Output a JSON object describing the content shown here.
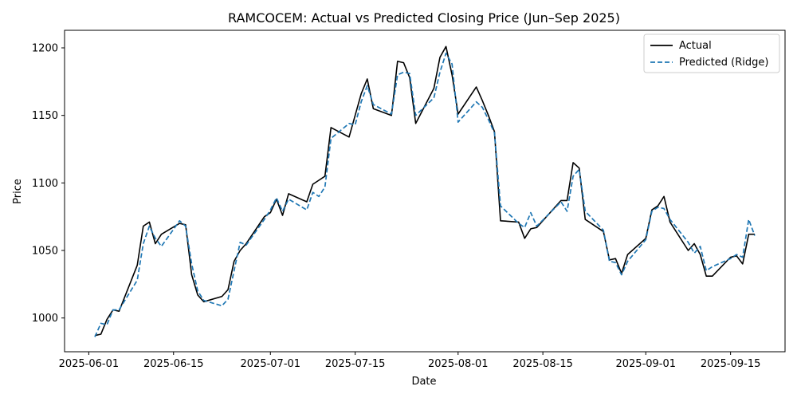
{
  "chart_data": {
    "type": "line",
    "title": "RAMCOCEM: Actual vs Predicted Closing Price (Jun–Sep 2025)",
    "xlabel": "Date",
    "ylabel": "Price",
    "xlim": [
      "2025-05-28",
      "2025-09-24"
    ],
    "ylim": [
      975,
      1213
    ],
    "x_ticks": [
      "2025-06-01",
      "2025-06-15",
      "2025-07-01",
      "2025-07-15",
      "2025-08-01",
      "2025-08-15",
      "2025-09-01",
      "2025-09-15"
    ],
    "y_ticks": [
      1000,
      1050,
      1100,
      1150,
      1200
    ],
    "grid": false,
    "legend_position": "top-right",
    "series": [
      {
        "name": "Actual",
        "color": "#000000",
        "style": "solid",
        "points": [
          [
            "2025-06-02",
            987
          ],
          [
            "2025-06-03",
            988
          ],
          [
            "2025-06-04",
            999
          ],
          [
            "2025-06-05",
            1006
          ],
          [
            "2025-06-06",
            1005
          ],
          [
            "2025-06-09",
            1039
          ],
          [
            "2025-06-10",
            1068
          ],
          [
            "2025-06-11",
            1071
          ],
          [
            "2025-06-12",
            1055
          ],
          [
            "2025-06-13",
            1062
          ],
          [
            "2025-06-16",
            1070
          ],
          [
            "2025-06-17",
            1069
          ],
          [
            "2025-06-18",
            1032
          ],
          [
            "2025-06-19",
            1017
          ],
          [
            "2025-06-20",
            1012
          ],
          [
            "2025-06-23",
            1016
          ],
          [
            "2025-06-24",
            1021
          ],
          [
            "2025-06-25",
            1042
          ],
          [
            "2025-06-26",
            1050
          ],
          [
            "2025-06-27",
            1055
          ],
          [
            "2025-06-30",
            1075
          ],
          [
            "2025-07-01",
            1078
          ],
          [
            "2025-07-02",
            1088
          ],
          [
            "2025-07-03",
            1076
          ],
          [
            "2025-07-04",
            1092
          ],
          [
            "2025-07-07",
            1086
          ],
          [
            "2025-07-08",
            1099
          ],
          [
            "2025-07-09",
            1102
          ],
          [
            "2025-07-10",
            1105
          ],
          [
            "2025-07-11",
            1141
          ],
          [
            "2025-07-14",
            1134
          ],
          [
            "2025-07-15",
            1150
          ],
          [
            "2025-07-16",
            1166
          ],
          [
            "2025-07-17",
            1177
          ],
          [
            "2025-07-18",
            1155
          ],
          [
            "2025-07-21",
            1150
          ],
          [
            "2025-07-22",
            1190
          ],
          [
            "2025-07-23",
            1189
          ],
          [
            "2025-07-24",
            1178
          ],
          [
            "2025-07-25",
            1144
          ],
          [
            "2025-07-28",
            1170
          ],
          [
            "2025-07-29",
            1193
          ],
          [
            "2025-07-30",
            1201
          ],
          [
            "2025-07-31",
            1180
          ],
          [
            "2025-08-01",
            1151
          ],
          [
            "2025-08-04",
            1171
          ],
          [
            "2025-08-05",
            1161
          ],
          [
            "2025-08-06",
            1150
          ],
          [
            "2025-08-07",
            1138
          ],
          [
            "2025-08-08",
            1072
          ],
          [
            "2025-08-11",
            1071
          ],
          [
            "2025-08-12",
            1059
          ],
          [
            "2025-08-13",
            1066
          ],
          [
            "2025-08-14",
            1067
          ],
          [
            "2025-08-18",
            1087
          ],
          [
            "2025-08-19",
            1087
          ],
          [
            "2025-08-20",
            1115
          ],
          [
            "2025-08-21",
            1111
          ],
          [
            "2025-08-22",
            1073
          ],
          [
            "2025-08-25",
            1064
          ],
          [
            "2025-08-26",
            1043
          ],
          [
            "2025-08-27",
            1044
          ],
          [
            "2025-08-28",
            1033
          ],
          [
            "2025-08-29",
            1047
          ],
          [
            "2025-09-01",
            1059
          ],
          [
            "2025-09-02",
            1080
          ],
          [
            "2025-09-03",
            1083
          ],
          [
            "2025-09-04",
            1090
          ],
          [
            "2025-09-05",
            1071
          ],
          [
            "2025-09-08",
            1050
          ],
          [
            "2025-09-09",
            1055
          ],
          [
            "2025-09-10",
            1047
          ],
          [
            "2025-09-11",
            1031
          ],
          [
            "2025-09-12",
            1031
          ],
          [
            "2025-09-15",
            1045
          ],
          [
            "2025-09-16",
            1046
          ],
          [
            "2025-09-17",
            1040
          ],
          [
            "2025-09-18",
            1062
          ],
          [
            "2025-09-19",
            1062
          ]
        ]
      },
      {
        "name": "Predicted (Ridge)",
        "color": "#1f77b4",
        "style": "dashed",
        "points": [
          [
            "2025-06-02",
            986
          ],
          [
            "2025-06-03",
            996
          ],
          [
            "2025-06-04",
            995
          ],
          [
            "2025-06-05",
            1006
          ],
          [
            "2025-06-06",
            1006
          ],
          [
            "2025-06-09",
            1028
          ],
          [
            "2025-06-10",
            1055
          ],
          [
            "2025-06-11",
            1068
          ],
          [
            "2025-06-12",
            1059
          ],
          [
            "2025-06-13",
            1053
          ],
          [
            "2025-06-16",
            1072
          ],
          [
            "2025-06-17",
            1068
          ],
          [
            "2025-06-18",
            1040
          ],
          [
            "2025-06-19",
            1020
          ],
          [
            "2025-06-20",
            1013
          ],
          [
            "2025-06-23",
            1009
          ],
          [
            "2025-06-24",
            1014
          ],
          [
            "2025-06-25",
            1035
          ],
          [
            "2025-06-26",
            1056
          ],
          [
            "2025-06-27",
            1054
          ],
          [
            "2025-06-30",
            1073
          ],
          [
            "2025-07-01",
            1080
          ],
          [
            "2025-07-02",
            1089
          ],
          [
            "2025-07-03",
            1079
          ],
          [
            "2025-07-04",
            1088
          ],
          [
            "2025-07-07",
            1080
          ],
          [
            "2025-07-08",
            1093
          ],
          [
            "2025-07-09",
            1090
          ],
          [
            "2025-07-10",
            1097
          ],
          [
            "2025-07-11",
            1133
          ],
          [
            "2025-07-14",
            1144
          ],
          [
            "2025-07-15",
            1143
          ],
          [
            "2025-07-16",
            1160
          ],
          [
            "2025-07-17",
            1172
          ],
          [
            "2025-07-18",
            1158
          ],
          [
            "2025-07-21",
            1151
          ],
          [
            "2025-07-22",
            1180
          ],
          [
            "2025-07-23",
            1182
          ],
          [
            "2025-07-24",
            1181
          ],
          [
            "2025-07-25",
            1150
          ],
          [
            "2025-07-28",
            1163
          ],
          [
            "2025-07-29",
            1182
          ],
          [
            "2025-07-30",
            1196
          ],
          [
            "2025-07-31",
            1188
          ],
          [
            "2025-08-01",
            1145
          ],
          [
            "2025-08-04",
            1160
          ],
          [
            "2025-08-05",
            1156
          ],
          [
            "2025-08-06",
            1147
          ],
          [
            "2025-08-07",
            1137
          ],
          [
            "2025-08-08",
            1083
          ],
          [
            "2025-08-11",
            1070
          ],
          [
            "2025-08-12",
            1067
          ],
          [
            "2025-08-13",
            1078
          ],
          [
            "2025-08-14",
            1068
          ],
          [
            "2025-08-18",
            1086
          ],
          [
            "2025-08-19",
            1079
          ],
          [
            "2025-08-20",
            1105
          ],
          [
            "2025-08-21",
            1110
          ],
          [
            "2025-08-22",
            1079
          ],
          [
            "2025-08-25",
            1065
          ],
          [
            "2025-08-26",
            1042
          ],
          [
            "2025-08-27",
            1041
          ],
          [
            "2025-08-28",
            1032
          ],
          [
            "2025-08-29",
            1042
          ],
          [
            "2025-09-01",
            1058
          ],
          [
            "2025-09-02",
            1079
          ],
          [
            "2025-09-03",
            1082
          ],
          [
            "2025-09-04",
            1081
          ],
          [
            "2025-09-05",
            1073
          ],
          [
            "2025-09-08",
            1056
          ],
          [
            "2025-09-09",
            1048
          ],
          [
            "2025-09-10",
            1053
          ],
          [
            "2025-09-11",
            1035
          ],
          [
            "2025-09-12",
            1038
          ],
          [
            "2025-09-15",
            1044
          ],
          [
            "2025-09-16",
            1047
          ],
          [
            "2025-09-17",
            1045
          ],
          [
            "2025-09-18",
            1073
          ],
          [
            "2025-09-19",
            1061
          ]
        ]
      }
    ]
  }
}
